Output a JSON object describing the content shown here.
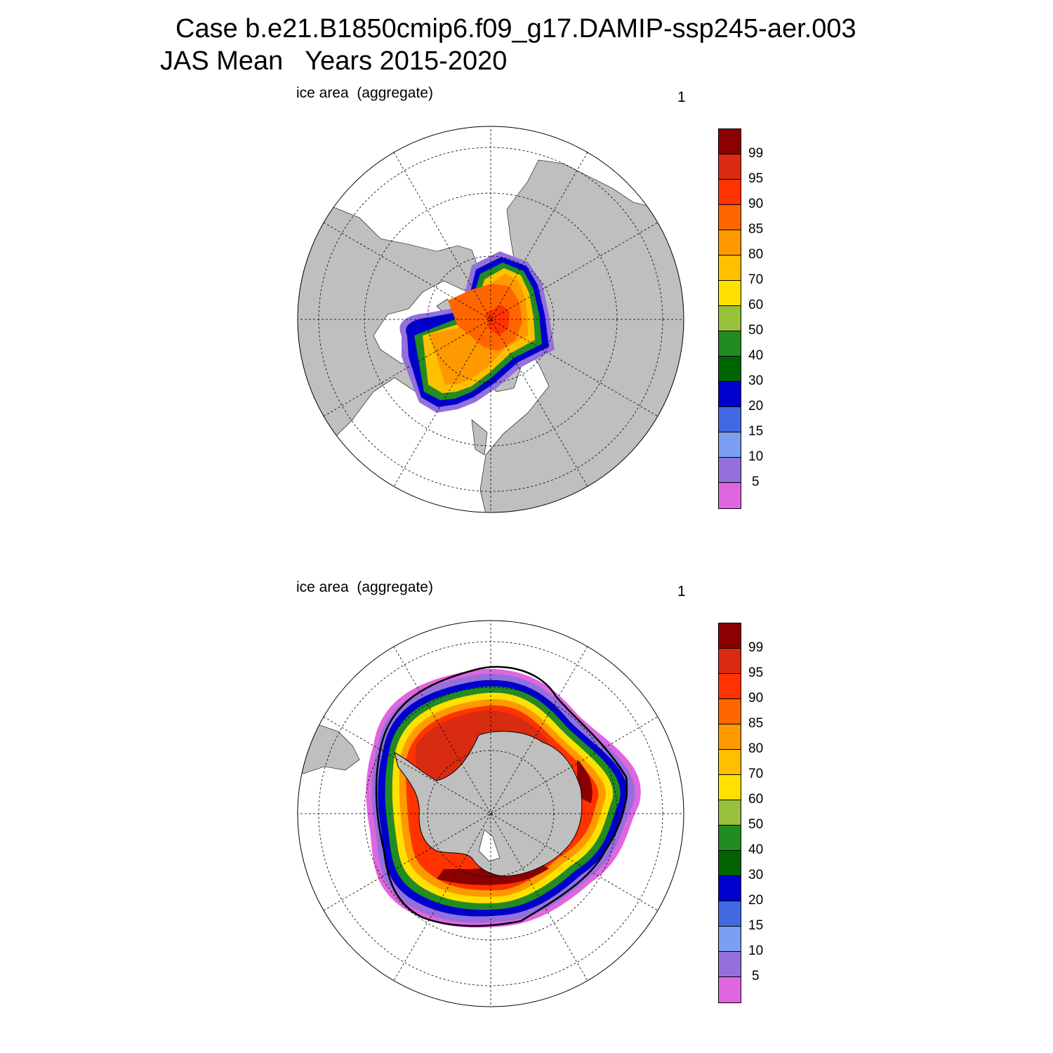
{
  "title_line1": "Case b.e21.B1850cmip6.f09_g17.DAMIP-ssp245-aer.003",
  "title_line2": "JAS Mean   Years 2015-2020",
  "panels": [
    {
      "label": "ice area  (aggregate)",
      "number": "1",
      "hemisphere": "north"
    },
    {
      "label": "ice area  (aggregate)",
      "number": "1",
      "hemisphere": "south"
    }
  ],
  "colorbar": {
    "levels": [
      "99",
      "95",
      "90",
      "85",
      "80",
      "70",
      "60",
      "50",
      "40",
      "30",
      "20",
      "15",
      "10",
      "5"
    ],
    "colors": [
      "#8b0000",
      "#d92b10",
      "#ff3300",
      "#ff6600",
      "#ff9900",
      "#ffc000",
      "#ffe000",
      "#99c03a",
      "#228b22",
      "#006400",
      "#0000cd",
      "#4169e1",
      "#7b9ff0",
      "#9370db",
      "#e066e0"
    ]
  },
  "map_colors": {
    "land": "#bfbfbf",
    "ocean": "#ffffff"
  }
}
